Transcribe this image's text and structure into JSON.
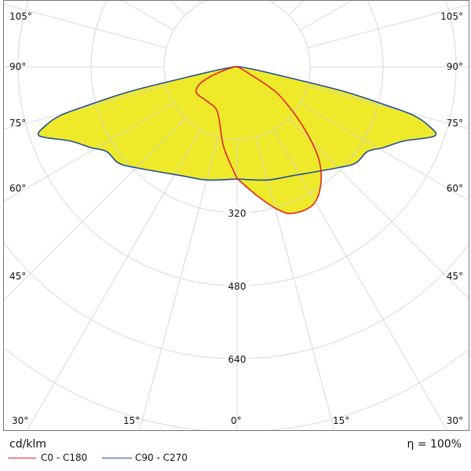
{
  "chart_data": {
    "type": "polar",
    "unit_label": "cd/klm",
    "efficiency_label": "η = 100%",
    "radial_ticks": [
      320,
      480,
      640
    ],
    "radial_grid_step": 160,
    "angle_ticks_left": [
      "105°",
      "90°",
      "75°",
      "60°",
      "45°",
      "30°"
    ],
    "angle_ticks_bottom": [
      "15°",
      "0°",
      "15°"
    ],
    "angle_ticks_right": [
      "105°",
      "90°",
      "75°",
      "60°",
      "45°",
      "30°"
    ],
    "grid": true,
    "fill_color": "#eeea2a",
    "series": [
      {
        "name": "C0 - C180",
        "color": "#e52420",
        "right_plane": "C0",
        "left_plane": "C180",
        "right": {
          "gamma": [
            0,
            9,
            16,
            21,
            29,
            36,
            42,
            48,
            55,
            58,
            62,
            90
          ],
          "intensity": [
            245,
            287,
            326,
            344,
            345,
            313,
            265,
            193,
            120,
            80,
            20,
            0
          ]
        },
        "left": {
          "gamma": [
            0,
            9.5,
            23,
            39,
            57,
            65,
            70,
            74,
            80,
            90
          ],
          "intensity": [
            245,
            178,
            109,
            100,
            106,
            91,
            60,
            31,
            10,
            0
          ]
        }
      },
      {
        "name": "C90 - C270",
        "color": "#1f4e9c",
        "right_plane": "C90",
        "left_plane": "C270",
        "right": {
          "gamma": [
            0,
            15,
            27,
            45,
            51,
            57,
            61,
            66,
            70.7,
            72.9,
            74.6,
            75.6,
            77,
            78,
            80,
            85,
            90
          ],
          "intensity": [
            246,
            257,
            268,
            313,
            335,
            341,
            366,
            400,
            459,
            439,
            400,
            332,
            240,
            125,
            50,
            10,
            0
          ]
        },
        "left": {
          "gamma": [
            0,
            15,
            27,
            45,
            51,
            57,
            61,
            66,
            70.7,
            72.9,
            74.6,
            75.6,
            77,
            78,
            80,
            85,
            90
          ],
          "intensity": [
            246,
            257,
            268,
            313,
            335,
            341,
            366,
            400,
            459,
            439,
            400,
            332,
            240,
            125,
            50,
            10,
            0
          ]
        }
      }
    ]
  }
}
